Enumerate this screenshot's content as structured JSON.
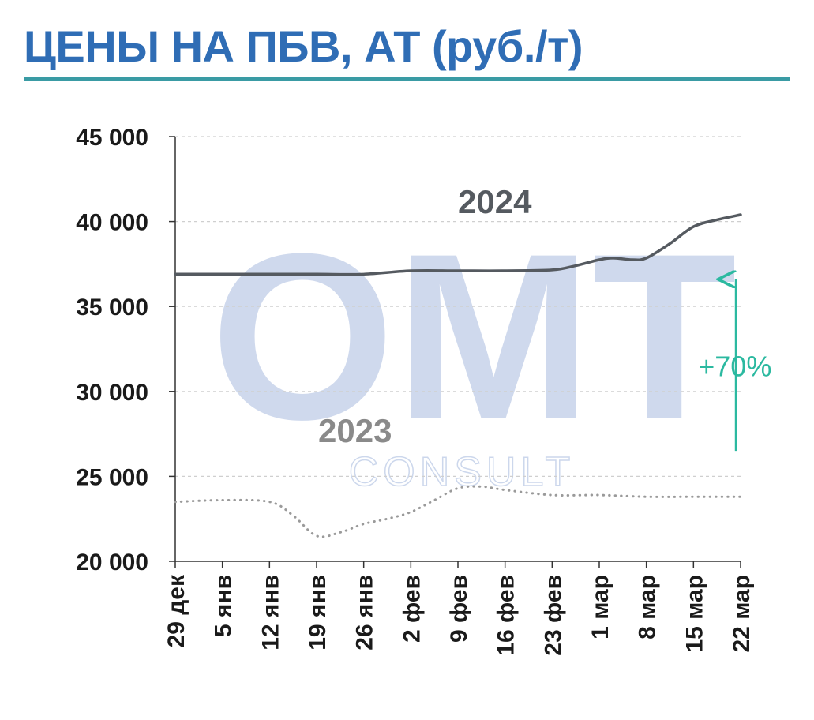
{
  "header": {
    "title": "ЦЕНЫ НА ПБВ, АТ (руб./т)"
  },
  "colors": {
    "title": "#2f6db5",
    "title_rule": "#3a9ba4",
    "series_2024": "#555a60",
    "series_2023": "#9a9a9a",
    "label_2024": "#555a60",
    "label_2023": "#8a8a8a",
    "annotation": "#2bb9a0",
    "grid": "#cfcfcf",
    "axis": "#333333",
    "watermark_blue": "#c7d3ea",
    "watermark_teal": "#c8ece1"
  },
  "watermark": {
    "main": "ОМТ",
    "sub": "CONSULT"
  },
  "chart_data": {
    "type": "line",
    "title": "ЦЕНЫ НА ПБВ, АТ (руб./т)",
    "xlabel": "",
    "ylabel": "",
    "categories": [
      "29 дек",
      "5 янв",
      "12 янв",
      "19 янв",
      "26 янв",
      "2 фев",
      "9 фев",
      "16 фев",
      "23 фев",
      "1 мар",
      "8 мар",
      "15 мар",
      "22 мар"
    ],
    "y_ticks": [
      "20 000",
      "25 000",
      "30 000",
      "35 000",
      "40 000",
      "45 000"
    ],
    "y_tick_values": [
      20000,
      25000,
      30000,
      35000,
      40000,
      45000
    ],
    "ylim": [
      20000,
      45000
    ],
    "grid": true,
    "series": [
      {
        "name": "2024",
        "style": "solid",
        "x": [
          0,
          1,
          2,
          3,
          4,
          5,
          6,
          7,
          8,
          8.5,
          9,
          9.3,
          9.7,
          10,
          10.5,
          11,
          11.5,
          12
        ],
        "values": [
          36900,
          36900,
          36900,
          36900,
          36900,
          37100,
          37100,
          37100,
          37150,
          37400,
          37750,
          37850,
          37750,
          37850,
          38700,
          39700,
          40100,
          40400
        ]
      },
      {
        "name": "2023",
        "style": "dotted",
        "x": [
          0,
          1,
          2,
          2.5,
          3,
          3.5,
          4,
          4.5,
          5,
          5.5,
          6,
          6.5,
          7,
          8,
          9,
          10,
          11,
          12
        ],
        "values": [
          23500,
          23600,
          23500,
          22700,
          21500,
          21700,
          22200,
          22500,
          22900,
          23600,
          24300,
          24400,
          24200,
          23900,
          23900,
          23800,
          23800,
          23800
        ]
      }
    ],
    "annotations": [
      {
        "text": "+70%",
        "arrow_from": {
          "x": 11.9,
          "y": 26500
        },
        "arrow_to": {
          "x": 11.9,
          "y": 36600
        },
        "text_at": {
          "x": 11.2,
          "y": 30900
        }
      }
    ]
  }
}
